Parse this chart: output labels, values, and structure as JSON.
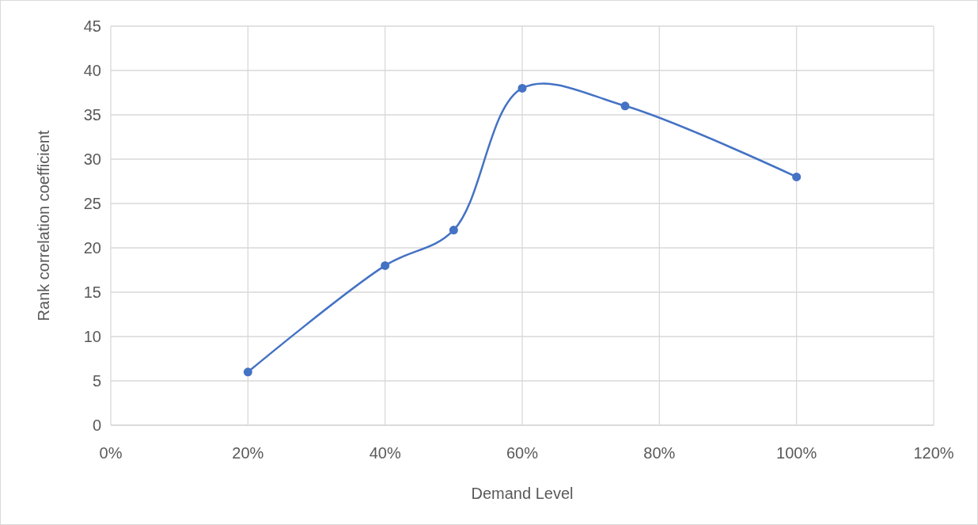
{
  "chart_data": {
    "type": "line",
    "xlabel": "Demand Level",
    "ylabel": "Rank correlation coefficient",
    "x": [
      0.2,
      0.4,
      0.5,
      0.6,
      0.75,
      1.0
    ],
    "series": [
      {
        "color": "#4472c4",
        "values": [
          6,
          18,
          22,
          38,
          36,
          28
        ]
      }
    ],
    "xlim": [
      0,
      1.2
    ],
    "xticks": [
      {
        "value": 0,
        "label": "0%"
      },
      {
        "value": 0.2,
        "label": "20%"
      },
      {
        "value": 0.4,
        "label": "40%"
      },
      {
        "value": 0.6,
        "label": "60%"
      },
      {
        "value": 0.8,
        "label": "80%"
      },
      {
        "value": 1.0,
        "label": "100%"
      },
      {
        "value": 1.2,
        "label": "120%"
      }
    ],
    "ylim": [
      0,
      45
    ],
    "yticks": [
      0,
      5,
      10,
      15,
      20,
      25,
      30,
      35,
      40,
      45
    ],
    "grid": true,
    "marker": "circle",
    "line_style": "solid"
  }
}
